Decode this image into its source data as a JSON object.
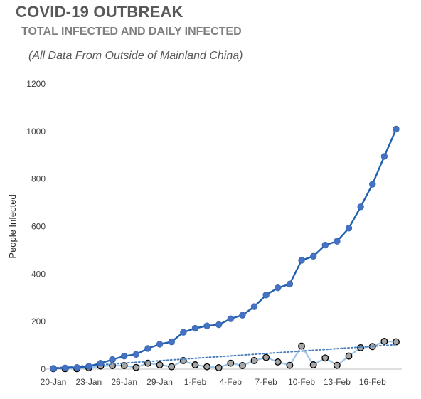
{
  "chart_data": {
    "type": "line",
    "title": "COVID-19 OUTBREAK",
    "subtitle": "TOTAL INFECTED AND DAILY INFECTED",
    "note": "(All Data From Outside of Mainland China)",
    "xlabel": "",
    "ylabel": "People Infected",
    "ylim": [
      0,
      1200
    ],
    "yticks": [
      0,
      200,
      400,
      600,
      800,
      1000,
      1200
    ],
    "x": [
      "20-Jan",
      "21-Jan",
      "22-Jan",
      "23-Jan",
      "24-Jan",
      "25-Jan",
      "26-Jan",
      "27-Jan",
      "28-Jan",
      "29-Jan",
      "30-Jan",
      "31-Jan",
      "1-Feb",
      "2-Feb",
      "3-Feb",
      "4-Feb",
      "5-Feb",
      "6-Feb",
      "7-Feb",
      "8-Feb",
      "9-Feb",
      "10-Feb",
      "11-Feb",
      "12-Feb",
      "13-Feb",
      "14-Feb",
      "15-Feb",
      "16-Feb",
      "17-Feb",
      "18-Feb"
    ],
    "xticks": [
      "20-Jan",
      "23-Jan",
      "26-Jan",
      "29-Jan",
      "1-Feb",
      "4-Feb",
      "7-Feb",
      "10-Feb",
      "13-Feb",
      "16-Feb"
    ],
    "grid": false,
    "series": [
      {
        "style": "line-markers",
        "color": "#1f5fb0",
        "marker_color": "#4472c4",
        "values": [
          3,
          5,
          7,
          12,
          25,
          40,
          55,
          62,
          87,
          105,
          115,
          155,
          172,
          182,
          187,
          212,
          227,
          263,
          312,
          342,
          358,
          458,
          475,
          522,
          538,
          593,
          683,
          778,
          895,
          1010
        ]
      },
      {
        "style": "line-markers",
        "color": "#9dc3e6",
        "marker_color": "#a6a6a6",
        "marker_edge": "#000000",
        "values": [
          2,
          2,
          2,
          6,
          13,
          15,
          15,
          7,
          25,
          18,
          10,
          36,
          18,
          10,
          6,
          25,
          15,
          36,
          49,
          30,
          16,
          97,
          18,
          47,
          16,
          55,
          90,
          95,
          117,
          115
        ]
      }
    ],
    "trendline": {
      "of_series": 1,
      "style": "dotted",
      "color": "#4a7ebb",
      "start_value": 5,
      "end_value": 103
    }
  }
}
